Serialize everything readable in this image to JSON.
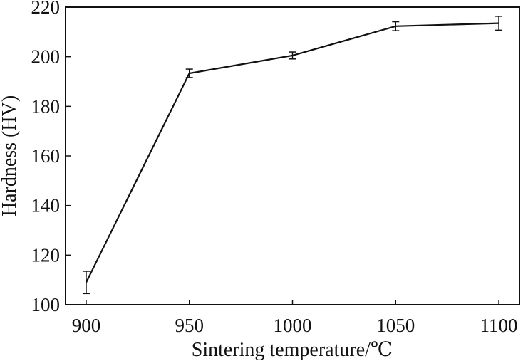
{
  "chart_data": {
    "type": "line",
    "title": "",
    "xlabel": "Sintering temperature/℃",
    "ylabel": "Hardness (HV)",
    "x": [
      900,
      950,
      1000,
      1050,
      1100
    ],
    "xlim": [
      890,
      1110
    ],
    "ylim": [
      100,
      220
    ],
    "xticks": [
      900,
      950,
      1000,
      1050,
      1100
    ],
    "yticks": [
      100,
      120,
      140,
      160,
      180,
      200,
      220
    ],
    "series": [
      {
        "values": [
          109,
          193.3,
          200.5,
          212.3,
          213.5
        ],
        "error": [
          4.5,
          1.7,
          1.4,
          1.8,
          2.8
        ],
        "color": "#111111"
      }
    ],
    "grid": false,
    "legend": "none"
  }
}
